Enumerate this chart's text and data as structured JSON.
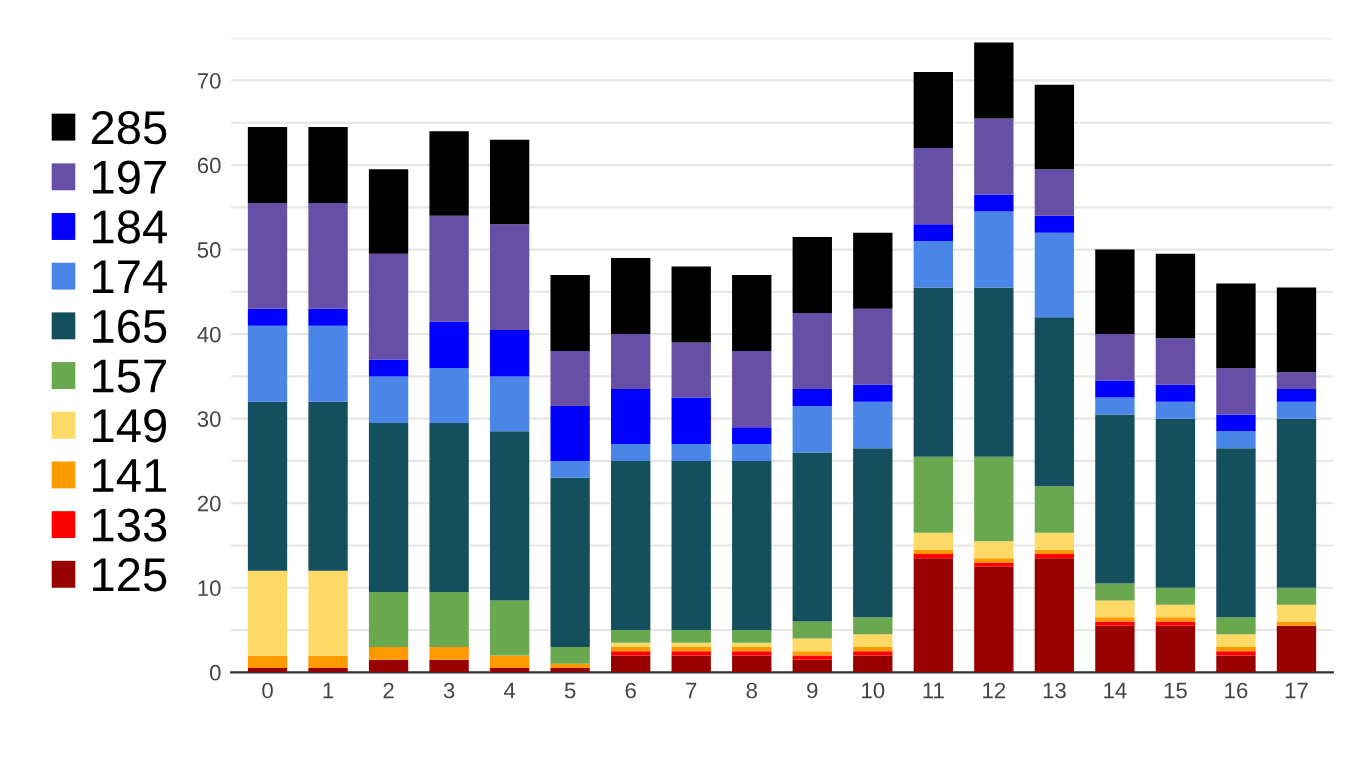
{
  "chart_data": {
    "type": "bar",
    "stacked": true,
    "legend": "left",
    "grid": "y",
    "categories": [
      "0",
      "1",
      "2",
      "3",
      "4",
      "5",
      "6",
      "7",
      "8",
      "9",
      "10",
      "11",
      "12",
      "13",
      "14",
      "15",
      "16",
      "17"
    ],
    "ylim": [
      0,
      75
    ],
    "yticks": [
      0,
      {
        "value": 5,
        "label": null
      },
      10,
      {
        "value": 15,
        "label": null
      },
      20,
      {
        "value": 25,
        "label": null
      },
      30,
      {
        "value": 35,
        "label": null
      },
      40,
      {
        "value": 45,
        "label": null
      },
      50,
      {
        "value": 55,
        "label": null
      },
      60,
      {
        "value": 65,
        "label": null
      },
      70,
      {
        "value": 75,
        "label": null
      }
    ],
    "series": [
      {
        "name": "125",
        "color": "#990000",
        "values": [
          0.5,
          0.5,
          1.5,
          1.5,
          0.5,
          0.5,
          2,
          2,
          2,
          1.5,
          2,
          13.5,
          12.5,
          13.5,
          5.5,
          5.5,
          2,
          5.5
        ]
      },
      {
        "name": "133",
        "color": "#ff0000",
        "values": [
          0,
          0,
          0,
          0,
          0,
          0,
          0.5,
          0.5,
          0.5,
          0.5,
          0.5,
          0.5,
          0.5,
          0.5,
          0.5,
          0.5,
          0.5,
          0
        ]
      },
      {
        "name": "141",
        "color": "#ff9900",
        "values": [
          1.5,
          1.5,
          1.5,
          1.5,
          1.5,
          0.5,
          0.5,
          0.5,
          0.5,
          0.5,
          0.5,
          0.5,
          0.5,
          0.5,
          0.5,
          0.5,
          0.5,
          0.5
        ]
      },
      {
        "name": "149",
        "color": "#ffd966",
        "values": [
          10,
          10,
          0,
          0,
          0,
          0,
          0.5,
          0.5,
          0.5,
          1.5,
          1.5,
          2,
          2,
          2,
          2,
          1.5,
          1.5,
          2
        ]
      },
      {
        "name": "157",
        "color": "#6aa84f",
        "values": [
          0,
          0,
          6.5,
          6.5,
          6.5,
          2,
          1.5,
          1.5,
          1.5,
          2,
          2,
          9,
          10,
          5.5,
          2,
          2,
          2,
          2
        ]
      },
      {
        "name": "165",
        "color": "#134f5c",
        "values": [
          20,
          20,
          20,
          20,
          20,
          20,
          20,
          20,
          20,
          20,
          20,
          20,
          20,
          20,
          20,
          20,
          20,
          20
        ]
      },
      {
        "name": "174",
        "color": "#4a86e8",
        "values": [
          9,
          9,
          5.5,
          6.5,
          6.5,
          2,
          2,
          2,
          2,
          5.5,
          5.5,
          5.5,
          9,
          10,
          2,
          2,
          2,
          2
        ]
      },
      {
        "name": "184",
        "color": "#0000ff",
        "values": [
          2,
          2,
          2,
          5.5,
          5.5,
          6.5,
          6.5,
          5.5,
          2,
          2,
          2,
          2,
          2,
          2,
          2,
          2,
          2,
          1.5
        ]
      },
      {
        "name": "197",
        "color": "#674ea7",
        "values": [
          12.5,
          12.5,
          12.5,
          12.5,
          12.5,
          6.5,
          6.5,
          6.5,
          9,
          9,
          9,
          9,
          9,
          5.5,
          5.5,
          5.5,
          5.5,
          2
        ]
      },
      {
        "name": "285",
        "color": "#000000",
        "values": [
          9,
          9,
          10,
          10,
          10,
          9,
          9,
          9,
          9,
          9,
          9,
          9,
          9,
          10,
          10,
          10,
          10,
          10
        ]
      }
    ]
  }
}
